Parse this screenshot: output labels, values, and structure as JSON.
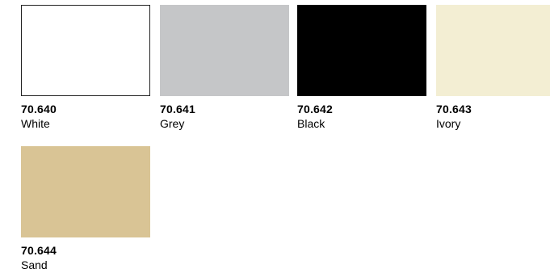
{
  "swatches": [
    {
      "code": "70.640",
      "name": "White",
      "color": "#ffffff",
      "outlined": true
    },
    {
      "code": "70.641",
      "name": "Grey",
      "color": "#c5c6c8",
      "outlined": false
    },
    {
      "code": "70.642",
      "name": "Black",
      "color": "#000000",
      "outlined": false
    },
    {
      "code": "70.643",
      "name": "Ivory",
      "color": "#f3eed3",
      "outlined": false
    },
    {
      "code": "70.644",
      "name": "Sand",
      "color": "#d9c495",
      "outlined": false
    }
  ]
}
